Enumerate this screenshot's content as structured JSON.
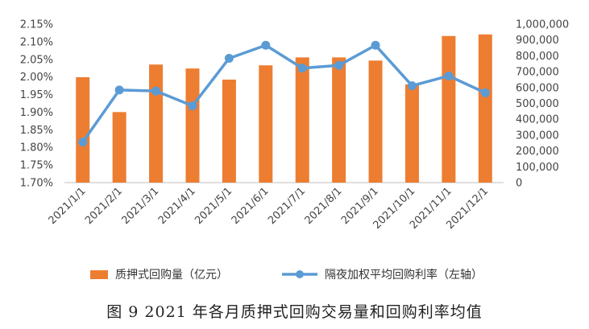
{
  "caption": "图 9   2021 年各月质押式回购交易量和回购利率均值",
  "chart_data": {
    "type": "bar+line",
    "title": "",
    "categories": [
      "2021/1/1",
      "2021/2/1",
      "2021/3/1",
      "2021/4/1",
      "2021/5/1",
      "2021/6/1",
      "2021/7/1",
      "2021/8/1",
      "2021/9/1",
      "2021/10/1",
      "2021/11/1",
      "2021/12/1"
    ],
    "series": [
      {
        "name": "质押式回购量（亿元）",
        "type": "bar",
        "axis": "right",
        "color": "#ED7D31",
        "values": [
          665000,
          445000,
          745000,
          720000,
          650000,
          740000,
          790000,
          790000,
          770000,
          620000,
          925000,
          935000
        ]
      },
      {
        "name": "隔夜加权平均回购利率（左轴）",
        "type": "line",
        "axis": "left",
        "color": "#5B9BD5",
        "values": [
          1.815,
          1.963,
          1.96,
          1.918,
          2.053,
          2.09,
          2.025,
          2.033,
          2.09,
          1.975,
          2.003,
          1.955
        ]
      }
    ],
    "y_left": {
      "lim": [
        1.7,
        2.15
      ],
      "ticks": [
        "1.70%",
        "1.75%",
        "1.80%",
        "1.85%",
        "1.90%",
        "1.95%",
        "2.00%",
        "2.05%",
        "2.10%",
        "2.15%"
      ]
    },
    "y_right": {
      "lim": [
        0,
        1000000
      ],
      "ticks": [
        "0",
        "100,000",
        "200,000",
        "300,000",
        "400,000",
        "500,000",
        "600,000",
        "700,000",
        "800,000",
        "900,000",
        "1,000,000"
      ]
    },
    "grid": false,
    "legend": "bottom"
  }
}
